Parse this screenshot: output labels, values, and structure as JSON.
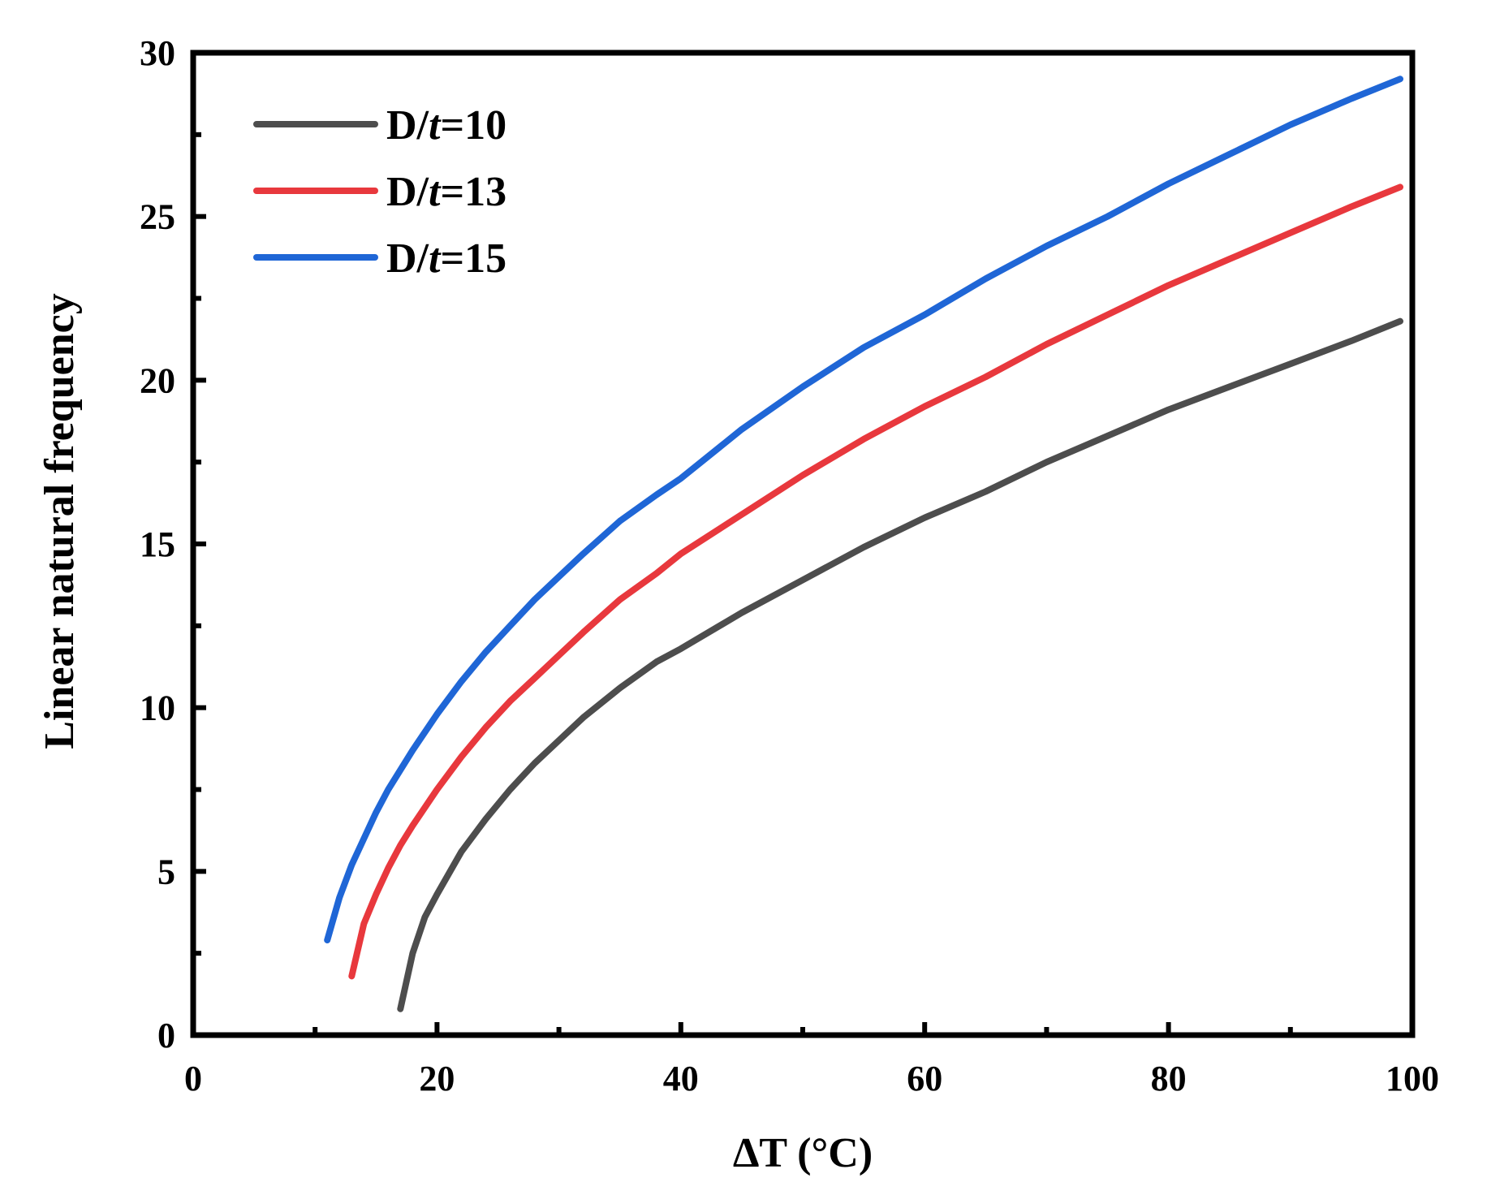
{
  "chart_data": {
    "type": "line",
    "title": "",
    "xlabel": "ΔT (°C)",
    "ylabel": "Linear natural frequency",
    "xlim": [
      0,
      100
    ],
    "ylim": [
      0,
      30
    ],
    "x_ticks": [
      0,
      20,
      40,
      60,
      80,
      100
    ],
    "x_tick_labels": [
      "0",
      "20",
      "40",
      "60",
      "80",
      "100"
    ],
    "y_ticks": [
      0,
      5,
      10,
      15,
      20,
      25,
      30
    ],
    "y_tick_labels": [
      "0",
      "5",
      "10",
      "15",
      "20",
      "25",
      "30"
    ],
    "x_minor_ticks": [
      10,
      30,
      50,
      70,
      90
    ],
    "y_minor_ticks": [
      2.5,
      7.5,
      12.5,
      17.5,
      22.5,
      27.5
    ],
    "legend_position": "top-left",
    "series": [
      {
        "name": "D/t=10",
        "legend_prefix": "D/",
        "legend_italic": "t",
        "legend_suffix": "=10",
        "color": "#4d4d4d",
        "x": [
          17,
          18,
          19,
          20,
          22,
          24,
          26,
          28,
          30,
          32,
          35,
          38,
          40,
          45,
          50,
          55,
          60,
          65,
          70,
          75,
          80,
          85,
          90,
          95,
          99
        ],
        "y": [
          0.8,
          2.5,
          3.6,
          4.3,
          5.6,
          6.6,
          7.5,
          8.3,
          9.0,
          9.7,
          10.6,
          11.4,
          11.8,
          12.9,
          13.9,
          14.9,
          15.8,
          16.6,
          17.5,
          18.3,
          19.1,
          19.8,
          20.5,
          21.2,
          21.8
        ]
      },
      {
        "name": "D/t=13",
        "legend_prefix": "D/",
        "legend_italic": "t",
        "legend_suffix": "=13",
        "color": "#e8383d",
        "x": [
          13,
          14,
          15,
          16,
          17,
          18,
          20,
          22,
          24,
          26,
          28,
          30,
          32,
          35,
          38,
          40,
          45,
          50,
          55,
          60,
          65,
          70,
          75,
          80,
          85,
          90,
          95,
          99
        ],
        "y": [
          1.8,
          3.4,
          4.3,
          5.1,
          5.8,
          6.4,
          7.5,
          8.5,
          9.4,
          10.2,
          10.9,
          11.6,
          12.3,
          13.3,
          14.1,
          14.7,
          15.9,
          17.1,
          18.2,
          19.2,
          20.1,
          21.1,
          22.0,
          22.9,
          23.7,
          24.5,
          25.3,
          25.9
        ]
      },
      {
        "name": "D/t=15",
        "legend_prefix": "D/",
        "legend_italic": "t",
        "legend_suffix": "=15",
        "color": "#1f66d6",
        "x": [
          11,
          12,
          13,
          14,
          15,
          16,
          18,
          20,
          22,
          24,
          26,
          28,
          30,
          32,
          35,
          38,
          40,
          45,
          50,
          55,
          60,
          65,
          70,
          75,
          80,
          85,
          90,
          95,
          99
        ],
        "y": [
          2.9,
          4.2,
          5.2,
          6.0,
          6.8,
          7.5,
          8.7,
          9.8,
          10.8,
          11.7,
          12.5,
          13.3,
          14.0,
          14.7,
          15.7,
          16.5,
          17.0,
          18.5,
          19.8,
          21.0,
          22.0,
          23.1,
          24.1,
          25.0,
          26.0,
          26.9,
          27.8,
          28.6,
          29.2
        ]
      }
    ]
  }
}
